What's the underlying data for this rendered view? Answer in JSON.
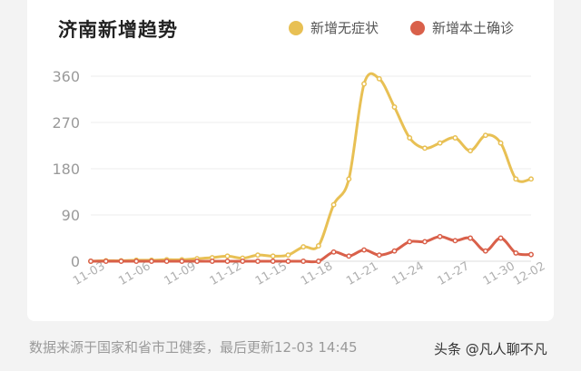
{
  "chart_data": {
    "type": "line",
    "title": "济南新增趋势",
    "categories": [
      "11-03",
      "11-04",
      "11-05",
      "11-06",
      "11-07",
      "11-08",
      "11-09",
      "11-10",
      "11-11",
      "11-12",
      "11-13",
      "11-14",
      "11-15",
      "11-16",
      "11-17",
      "11-18",
      "11-19",
      "11-20",
      "11-21",
      "11-22",
      "11-23",
      "11-24",
      "11-25",
      "11-26",
      "11-27",
      "11-28",
      "11-29",
      "11-30",
      "12-01",
      "12-02"
    ],
    "tick_labels": [
      "11-03",
      "11-06",
      "11-09",
      "11-12",
      "11-15",
      "11-18",
      "11-21",
      "11-24",
      "11-27",
      "11-30",
      "12-02"
    ],
    "tick_indices": [
      0,
      3,
      6,
      9,
      12,
      15,
      18,
      21,
      24,
      27,
      29
    ],
    "yticks": [
      "360",
      "270",
      "180",
      "90",
      "0"
    ],
    "ylim": [
      0,
      360
    ],
    "grid": "horizontal",
    "legend_position": "top-right",
    "series": [
      {
        "name": "新增无症状",
        "color": "#e8c054",
        "values": [
          0,
          1,
          1,
          2,
          2,
          3,
          3,
          5,
          7,
          10,
          6,
          12,
          10,
          12,
          28,
          30,
          110,
          160,
          345,
          355,
          300,
          240,
          220,
          230,
          240,
          215,
          245,
          230,
          160,
          160
        ]
      },
      {
        "name": "新增本土确诊",
        "color": "#d9604a",
        "values": [
          0,
          0,
          0,
          0,
          0,
          0,
          0,
          0,
          0,
          0,
          0,
          0,
          0,
          0,
          0,
          0,
          18,
          10,
          22,
          12,
          20,
          38,
          38,
          48,
          40,
          45,
          20,
          45,
          16,
          13
        ]
      }
    ]
  },
  "footer": {
    "source": "数据来源于国家和省市卫健委，最后更新12-03 14:45",
    "watermark": "头条 @凡人聊不凡"
  }
}
